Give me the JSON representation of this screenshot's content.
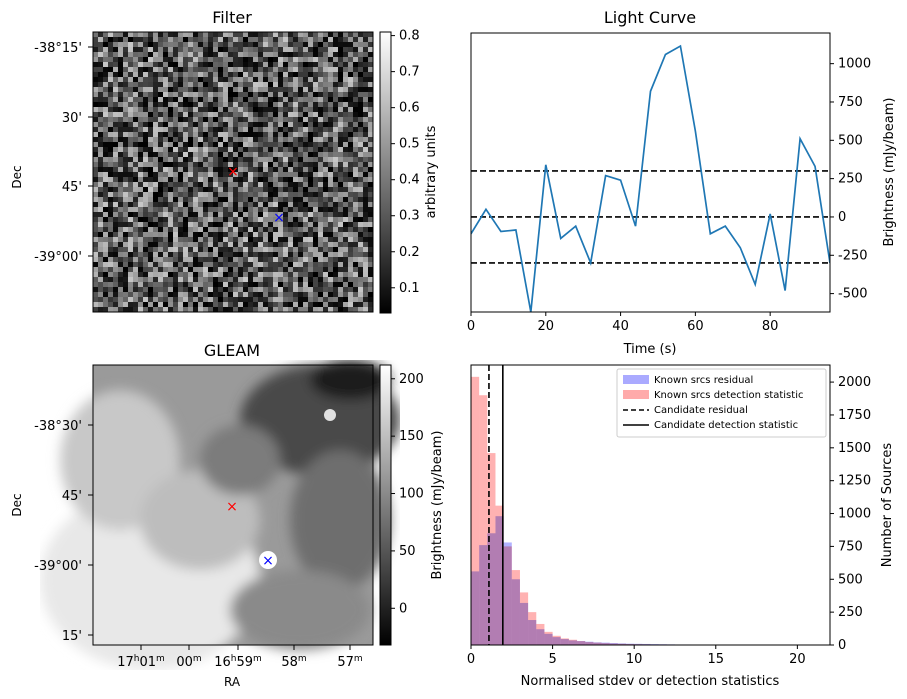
{
  "filter_panel": {
    "title": "Filter",
    "ylabel": "Dec",
    "dec_ticks": [
      "-38°15'",
      "30'",
      "45'",
      "-39°00'"
    ],
    "colorbar": {
      "label": "arbitrary units",
      "ticks": [
        "0.1",
        "0.2",
        "0.3",
        "0.4",
        "0.5",
        "0.6",
        "0.7",
        "0.8"
      ],
      "range": [
        0.03,
        0.81
      ]
    },
    "markers": [
      {
        "name": "candidate-marker",
        "symbol": "×",
        "color": "#ff0000"
      },
      {
        "name": "known-source-marker",
        "symbol": "×",
        "color": "#0000ff"
      }
    ]
  },
  "gleam_panel": {
    "title": "GLEAM",
    "ylabel": "Dec",
    "xlabel": "RA",
    "dec_ticks": [
      "-38°30'",
      "45'",
      "-39°00'",
      "15'"
    ],
    "ra_ticks": [
      {
        "main": "17",
        "sup1": "h",
        "mid": "01",
        "sup2": "m"
      },
      {
        "main": "00",
        "sup1": "m"
      },
      {
        "main": "16",
        "sup1": "h",
        "mid": "59",
        "sup2": "m"
      },
      {
        "main": "58",
        "sup1": "m"
      },
      {
        "main": "57",
        "sup1": "m"
      }
    ],
    "colorbar": {
      "label": "Brightness (mJy/beam)",
      "ticks": [
        "0",
        "50",
        "100",
        "150",
        "200"
      ],
      "range": [
        -32,
        212
      ]
    },
    "markers": [
      {
        "name": "candidate-marker",
        "symbol": "×",
        "color": "#ff0000"
      },
      {
        "name": "known-source-marker",
        "symbol": "×",
        "color": "#0000ff"
      }
    ]
  },
  "chart_data": [
    {
      "type": "line",
      "title": "Light Curve",
      "xlabel": "Time (s)",
      "ylabel": "Brightness (mJy/beam)",
      "xlim": [
        0,
        96
      ],
      "ylim": [
        -620,
        1200
      ],
      "xticks": [
        0,
        20,
        40,
        60,
        80
      ],
      "yticks": [
        -500,
        -250,
        0,
        250,
        500,
        750,
        1000
      ],
      "series": [
        {
          "name": "light curve",
          "color": "#1f77b4",
          "x": [
            0,
            4,
            8,
            12,
            16,
            20,
            24,
            28,
            32,
            36,
            40,
            44,
            48,
            52,
            56,
            60,
            64,
            68,
            72,
            76,
            80,
            84,
            88,
            92,
            96
          ],
          "y": [
            -110,
            50,
            -95,
            -85,
            -620,
            340,
            -140,
            -60,
            -300,
            270,
            240,
            -60,
            820,
            1060,
            1115,
            560,
            -110,
            -60,
            -200,
            -440,
            20,
            -480,
            510,
            330,
            -300
          ]
        }
      ],
      "hlines": [
        {
          "y": 300,
          "style": "dashed"
        },
        {
          "y": 0,
          "style": "dashed"
        },
        {
          "y": -300,
          "style": "dashed"
        }
      ]
    },
    {
      "type": "histogram",
      "xlabel": "Normalised stdev or detection statistics",
      "ylabel": "Number of Sources",
      "xlim": [
        0,
        22
      ],
      "ylim": [
        0,
        2130
      ],
      "xticks": [
        0,
        5,
        10,
        15,
        20
      ],
      "yticks": [
        0,
        250,
        500,
        750,
        1000,
        1250,
        1500,
        1750,
        2000
      ],
      "bin_width": 0.5,
      "series": [
        {
          "name": "Known srcs residual",
          "color": "#aaaaff",
          "values": [
            560,
            760,
            850,
            980,
            780,
            500,
            320,
            190,
            120,
            85,
            60,
            45,
            35,
            30,
            25,
            20,
            18,
            15,
            12,
            10,
            9,
            8,
            7,
            6,
            5,
            4,
            4,
            3,
            3,
            3,
            2,
            2,
            2,
            2,
            2,
            1,
            1,
            1,
            1,
            1,
            1,
            1,
            0,
            0
          ]
        },
        {
          "name": "Known srcs detection statistic",
          "color": "#ffaaaa",
          "values": [
            2040,
            1900,
            1460,
            1060,
            750,
            570,
            400,
            250,
            160,
            100,
            70,
            50,
            40,
            30,
            22,
            18,
            14,
            11,
            9,
            7,
            6,
            5,
            4,
            4,
            3,
            3,
            2,
            2,
            2,
            1,
            1,
            1,
            1,
            1,
            1,
            1,
            1,
            1,
            1,
            1,
            1,
            1,
            0,
            0
          ]
        }
      ],
      "vlines": [
        {
          "name": "Candidate residual",
          "x": 1.1,
          "style": "dashed"
        },
        {
          "name": "Candidate detection statistic",
          "x": 1.95,
          "style": "solid"
        }
      ],
      "legend_position": "top-right"
    }
  ]
}
